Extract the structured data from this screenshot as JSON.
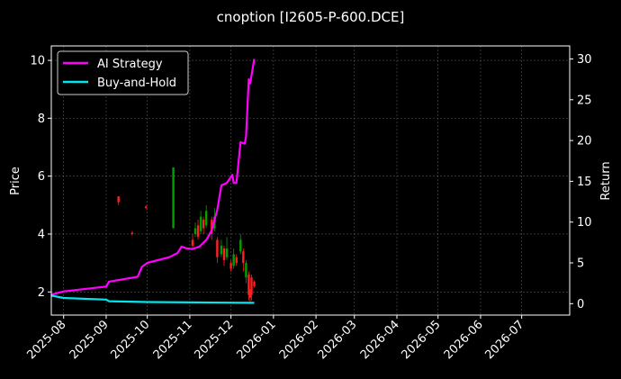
{
  "chart_data": {
    "type": "line",
    "title": "cnoption [I2605-P-600.DCE]",
    "ylabel_left": "Price",
    "ylabel_right": "Return",
    "xlim": [
      "2025-07-23",
      "2026-08-05"
    ],
    "ylim_left": [
      1.2,
      10.5
    ],
    "ylim_right": [
      -1.4,
      31.6
    ],
    "x_ticks": [
      "2025-08",
      "2025-09",
      "2025-10",
      "2025-11",
      "2025-12",
      "2026-01",
      "2026-02",
      "2026-03",
      "2026-04",
      "2026-05",
      "2026-06",
      "2026-07"
    ],
    "y_ticks_left": [
      "2",
      "4",
      "6",
      "8",
      "10"
    ],
    "y_ticks_right": [
      "0",
      "5",
      "10",
      "15",
      "20",
      "25",
      "30"
    ],
    "grid": true,
    "legend_position": "top-left",
    "colors": {
      "background": "#000000",
      "ai_strategy": "#ff00ff",
      "buy_and_hold": "#00e5ee",
      "candle_up": "#00a000",
      "candle_down": "#ff2020",
      "grid": "#555555"
    },
    "series": [
      {
        "name": "AI Strategy",
        "axis": "right",
        "points": [
          [
            "2025-07-23",
            1.1
          ],
          [
            "2025-08-01",
            1.5
          ],
          [
            "2025-09-01",
            2.1
          ],
          [
            "2025-09-03",
            2.7
          ],
          [
            "2025-09-24",
            3.3
          ],
          [
            "2025-09-27",
            4.5
          ],
          [
            "2025-10-01",
            5.0
          ],
          [
            "2025-10-17",
            5.7
          ],
          [
            "2025-10-23",
            6.2
          ],
          [
            "2025-10-26",
            7.0
          ],
          [
            "2025-10-29",
            6.8
          ],
          [
            "2025-11-03",
            6.7
          ],
          [
            "2025-11-08",
            7.0
          ],
          [
            "2025-11-13",
            7.8
          ],
          [
            "2025-11-17",
            9.0
          ],
          [
            "2025-11-21",
            11.5
          ],
          [
            "2025-11-24",
            14.5
          ],
          [
            "2025-11-28",
            14.8
          ],
          [
            "2025-12-02",
            15.8
          ],
          [
            "2025-12-03",
            14.8
          ],
          [
            "2025-12-05",
            14.8
          ],
          [
            "2025-12-08",
            19.8
          ],
          [
            "2025-12-11",
            19.6
          ],
          [
            "2025-12-12",
            20.5
          ],
          [
            "2025-12-14",
            27.5
          ],
          [
            "2025-12-15",
            27.0
          ],
          [
            "2025-12-16",
            28.0
          ],
          [
            "2025-12-18",
            30.0
          ]
        ]
      },
      {
        "name": "Buy-and-Hold",
        "axis": "right",
        "points": [
          [
            "2025-07-23",
            1.0
          ],
          [
            "2025-08-01",
            0.7
          ],
          [
            "2025-09-01",
            0.5
          ],
          [
            "2025-09-03",
            0.3
          ],
          [
            "2025-10-01",
            0.2
          ],
          [
            "2025-12-18",
            0.1
          ]
        ]
      }
    ],
    "candles": [
      {
        "date": "2025-09-10",
        "open": 5.3,
        "close": 5.1,
        "high": 5.3,
        "low": 5.0
      },
      {
        "date": "2025-09-20",
        "open": 4.05,
        "close": 4.0,
        "high": 4.1,
        "low": 3.95
      },
      {
        "date": "2025-09-30",
        "open": 4.95,
        "close": 4.9,
        "high": 5.0,
        "low": 4.85
      },
      {
        "date": "2025-10-20",
        "open": 4.2,
        "close": 6.3,
        "high": 6.3,
        "low": 4.2
      },
      {
        "date": "2025-11-03",
        "open": 3.8,
        "close": 3.6,
        "high": 4.0,
        "low": 3.5
      },
      {
        "date": "2025-11-05",
        "open": 4.0,
        "close": 4.2,
        "high": 4.4,
        "low": 3.9
      },
      {
        "date": "2025-11-07",
        "open": 4.3,
        "close": 3.9,
        "high": 4.5,
        "low": 3.8
      },
      {
        "date": "2025-11-09",
        "open": 4.1,
        "close": 4.6,
        "high": 4.8,
        "low": 4.0
      },
      {
        "date": "2025-11-11",
        "open": 4.5,
        "close": 4.2,
        "high": 4.6,
        "low": 4.0
      },
      {
        "date": "2025-11-13",
        "open": 4.3,
        "close": 4.8,
        "high": 5.0,
        "low": 4.2
      },
      {
        "date": "2025-11-17",
        "open": 4.5,
        "close": 4.0,
        "high": 4.6,
        "low": 3.8
      },
      {
        "date": "2025-11-19",
        "open": 4.2,
        "close": 4.6,
        "high": 4.9,
        "low": 4.1
      },
      {
        "date": "2025-11-21",
        "open": 3.8,
        "close": 3.2,
        "high": 3.9,
        "low": 3.0
      },
      {
        "date": "2025-11-24",
        "open": 3.3,
        "close": 3.6,
        "high": 3.8,
        "low": 3.2
      },
      {
        "date": "2025-11-26",
        "open": 3.5,
        "close": 3.1,
        "high": 3.6,
        "low": 2.9
      },
      {
        "date": "2025-11-28",
        "open": 3.2,
        "close": 3.5,
        "high": 3.9,
        "low": 3.1
      },
      {
        "date": "2025-12-01",
        "open": 3.0,
        "close": 2.8,
        "high": 3.1,
        "low": 2.7
      },
      {
        "date": "2025-12-03",
        "open": 2.9,
        "close": 3.3,
        "high": 3.5,
        "low": 2.8
      },
      {
        "date": "2025-12-05",
        "open": 3.2,
        "close": 3.0,
        "high": 3.3,
        "low": 2.9
      },
      {
        "date": "2025-12-08",
        "open": 3.4,
        "close": 3.8,
        "high": 4.0,
        "low": 3.3
      },
      {
        "date": "2025-12-10",
        "open": 3.4,
        "close": 3.0,
        "high": 3.5,
        "low": 2.7
      },
      {
        "date": "2025-12-12",
        "open": 2.5,
        "close": 3.0,
        "high": 3.1,
        "low": 2.3
      },
      {
        "date": "2025-12-14",
        "open": 2.6,
        "close": 1.9,
        "high": 2.7,
        "low": 1.7
      },
      {
        "date": "2025-12-15",
        "open": 2.0,
        "close": 1.8,
        "high": 2.1,
        "low": 1.6
      },
      {
        "date": "2025-12-16",
        "open": 2.5,
        "close": 1.9,
        "high": 2.6,
        "low": 1.7
      },
      {
        "date": "2025-12-18",
        "open": 2.35,
        "close": 2.2,
        "high": 2.4,
        "low": 2.15
      }
    ]
  }
}
